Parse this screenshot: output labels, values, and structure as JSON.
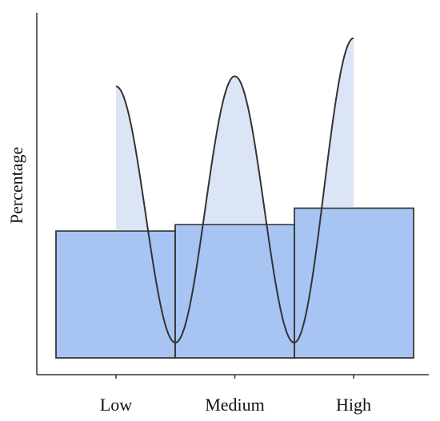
{
  "chart_data": {
    "type": "bar",
    "title": "",
    "xlabel": "",
    "ylabel": "Percentage",
    "categories": [
      "Low",
      "Medium",
      "High"
    ],
    "values": [
      50,
      52.5,
      59
    ],
    "ylim": [
      0,
      130
    ],
    "curve": {
      "type": "line",
      "points": [
        {
          "x": 0.0,
          "y": 107
        },
        {
          "x": 0.5,
          "y": 6
        },
        {
          "x": 1.0,
          "y": 111
        },
        {
          "x": 1.5,
          "y": 6
        },
        {
          "x": 2.0,
          "y": 126
        }
      ]
    },
    "grid": false,
    "legend": "none",
    "colors": {
      "bar_fill": "#a7c4f2",
      "bar_stroke": "#333333",
      "curve_fill": "#dbe5f6",
      "curve_stroke": "#333333",
      "axis": "#333333"
    }
  }
}
